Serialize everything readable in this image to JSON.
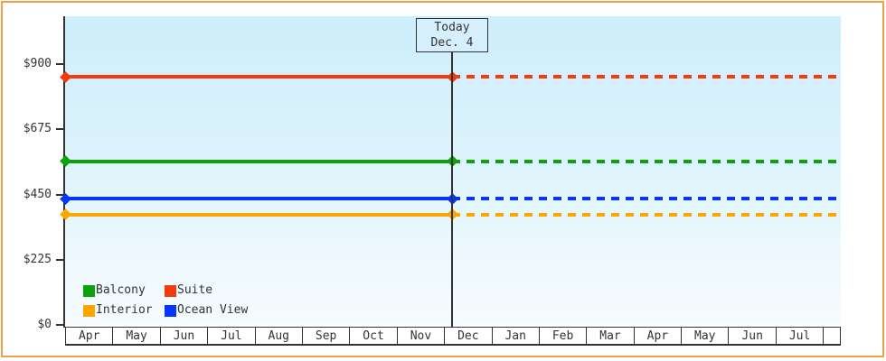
{
  "page": {
    "border_color": "#eba24b",
    "background_color": "#ffffff",
    "plot_bg_top": "#cdeefb",
    "plot_bg_bottom": "#f6fcfe",
    "axis_color": "#333333"
  },
  "chart_data": {
    "type": "line",
    "title": "",
    "xlabel": "",
    "ylabel": "",
    "months": [
      "Apr",
      "May",
      "Jun",
      "Jul",
      "Aug",
      "Sep",
      "Oct",
      "Nov",
      "Dec",
      "Jan",
      "Feb",
      "Mar",
      "Apr",
      "May",
      "Jun",
      "Jul"
    ],
    "y_ticks": [
      {
        "label": "$0",
        "value": 0
      },
      {
        "label": "$225",
        "value": 225
      },
      {
        "label": "$450",
        "value": 450
      },
      {
        "label": "$675",
        "value": 675
      },
      {
        "label": "$900",
        "value": 900
      }
    ],
    "ylim": [
      0,
      1065
    ],
    "grid": false,
    "today": {
      "line1": "Today",
      "line2": "Dec. 4",
      "month_label": "Dec"
    },
    "line_style": {
      "before_today": "solid",
      "after_today": "dotted",
      "marker": "diamond"
    },
    "series": [
      {
        "name": "Suite",
        "color": "#f43b0d",
        "value": 855
      },
      {
        "name": "Balcony",
        "color": "#0ca20c",
        "value": 565
      },
      {
        "name": "Ocean View",
        "color": "#0435fb",
        "value": 435
      },
      {
        "name": "Interior",
        "color": "#ffa502",
        "value": 380
      }
    ],
    "legend_position": "bottom-left",
    "legend": [
      {
        "label": "Balcony",
        "color": "#0ca20c"
      },
      {
        "label": "Suite",
        "color": "#f43b0d"
      },
      {
        "label": "Interior",
        "color": "#ffa502"
      },
      {
        "label": "Ocean View",
        "color": "#0435fb"
      }
    ]
  }
}
